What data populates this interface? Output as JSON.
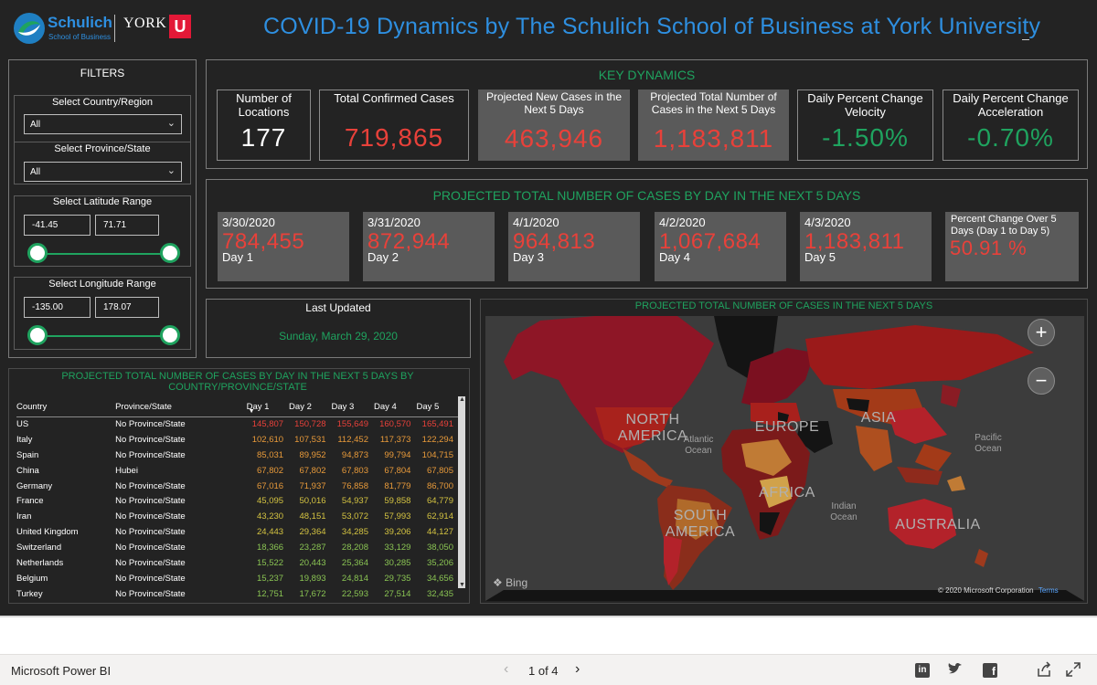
{
  "header": {
    "logo_schulich": "Schulich",
    "logo_school": "School of Business",
    "logo_york": "YORK",
    "logo_u": "U",
    "title": "COVID-19 Dynamics by The Schulich School of Business at York University"
  },
  "filters": {
    "title": "FILTERS",
    "country_label": "Select Country/Region",
    "country_value": "All",
    "province_label": "Select Province/State",
    "province_value": "All",
    "lat_label": "Select Latitude Range",
    "lat_min": "-41.45",
    "lat_max": "71.71",
    "lon_label": "Select Longitude Range",
    "lon_min": "-135.00",
    "lon_max": "178.07"
  },
  "key_dynamics": {
    "title": "KEY DYNAMICS",
    "cards": [
      {
        "label": "Number of Locations",
        "value": "177"
      },
      {
        "label": "Total Confirmed Cases",
        "value": "719,865"
      },
      {
        "label": "Projected New Cases in the Next 5 Days",
        "value": "463,946"
      },
      {
        "label": "Projected Total Number of Cases in the Next 5 Days",
        "value": "1,183,811"
      },
      {
        "label": "Daily Percent Change Velocity",
        "value": "-1.50%"
      },
      {
        "label": "Daily Percent Change Acceleration",
        "value": "-0.70%"
      }
    ]
  },
  "projected_days": {
    "title": "PROJECTED TOTAL NUMBER OF CASES BY DAY IN THE NEXT 5 DAYS",
    "days": [
      {
        "date": "3/30/2020",
        "value": "784,455",
        "label": "Day 1"
      },
      {
        "date": "3/31/2020",
        "value": "872,944",
        "label": "Day 2"
      },
      {
        "date": "4/1/2020",
        "value": "964,813",
        "label": "Day 3"
      },
      {
        "date": "4/2/2020",
        "value": "1,067,684",
        "label": "Day 4"
      },
      {
        "date": "4/3/2020",
        "value": "1,183,811",
        "label": "Day 5"
      }
    ],
    "pct_label": "Percent Change Over 5 Days (Day 1 to Day 5)",
    "pct_value": "50.91 %"
  },
  "last_updated": {
    "label": "Last Updated",
    "value": "Sunday, March 29, 2020"
  },
  "table": {
    "title": "PROJECTED TOTAL NUMBER OF CASES BY DAY IN THE NEXT 5 DAYS BY COUNTRY/PROVINCE/STATE",
    "headers": [
      "Country",
      "Province/State",
      "Day 1",
      "Day 2",
      "Day 3",
      "Day 4",
      "Day 5"
    ],
    "rows": [
      {
        "country": "US",
        "province": "No Province/State",
        "d": [
          "145,807",
          "150,728",
          "155,649",
          "160,570",
          "165,491"
        ],
        "color": "red"
      },
      {
        "country": "Italy",
        "province": "No Province/State",
        "d": [
          "102,610",
          "107,531",
          "112,452",
          "117,373",
          "122,294"
        ],
        "color": "org"
      },
      {
        "country": "Spain",
        "province": "No Province/State",
        "d": [
          "85,031",
          "89,952",
          "94,873",
          "99,794",
          "104,715"
        ],
        "color": "org"
      },
      {
        "country": "China",
        "province": "Hubei",
        "d": [
          "67,802",
          "67,802",
          "67,803",
          "67,804",
          "67,805"
        ],
        "color": "org"
      },
      {
        "country": "Germany",
        "province": "No Province/State",
        "d": [
          "67,016",
          "71,937",
          "76,858",
          "81,779",
          "86,700"
        ],
        "color": "org"
      },
      {
        "country": "France",
        "province": "No Province/State",
        "d": [
          "45,095",
          "50,016",
          "54,937",
          "59,858",
          "64,779"
        ],
        "color": "yel"
      },
      {
        "country": "Iran",
        "province": "No Province/State",
        "d": [
          "43,230",
          "48,151",
          "53,072",
          "57,993",
          "62,914"
        ],
        "color": "yel"
      },
      {
        "country": "United Kingdom",
        "province": "No Province/State",
        "d": [
          "24,443",
          "29,364",
          "34,285",
          "39,206",
          "44,127"
        ],
        "color": "yel"
      },
      {
        "country": "Switzerland",
        "province": "No Province/State",
        "d": [
          "18,366",
          "23,287",
          "28,208",
          "33,129",
          "38,050"
        ],
        "color": "grn"
      },
      {
        "country": "Netherlands",
        "province": "No Province/State",
        "d": [
          "15,522",
          "20,443",
          "25,364",
          "30,285",
          "35,206"
        ],
        "color": "grn"
      },
      {
        "country": "Belgium",
        "province": "No Province/State",
        "d": [
          "15,237",
          "19,893",
          "24,814",
          "29,735",
          "34,656"
        ],
        "color": "grn"
      },
      {
        "country": "Turkey",
        "province": "No Province/State",
        "d": [
          "12,751",
          "17,672",
          "22,593",
          "27,514",
          "32,435"
        ],
        "color": "grn"
      }
    ]
  },
  "map": {
    "title": "PROJECTED TOTAL NUMBER OF CASES IN THE NEXT 5 DAYS",
    "zoom_in": "+",
    "zoom_out": "−",
    "regions": [
      "NORTH AMERICA",
      "EUROPE",
      "ASIA",
      "AFRICA",
      "SOUTH AMERICA",
      "AUSTRALIA"
    ],
    "oceans": [
      "Atlantic Ocean",
      "Pacific Ocean",
      "Indian Ocean"
    ],
    "bing": "Bing",
    "copyright": "© 2020 Microsoft Corporation",
    "terms": "Terms"
  },
  "footer": {
    "app": "Microsoft Power BI",
    "page": "1 of 4"
  },
  "colors": {
    "accent_green": "#1fa35f",
    "title_blue": "#2e8fe0",
    "value_red": "#e8413a"
  }
}
